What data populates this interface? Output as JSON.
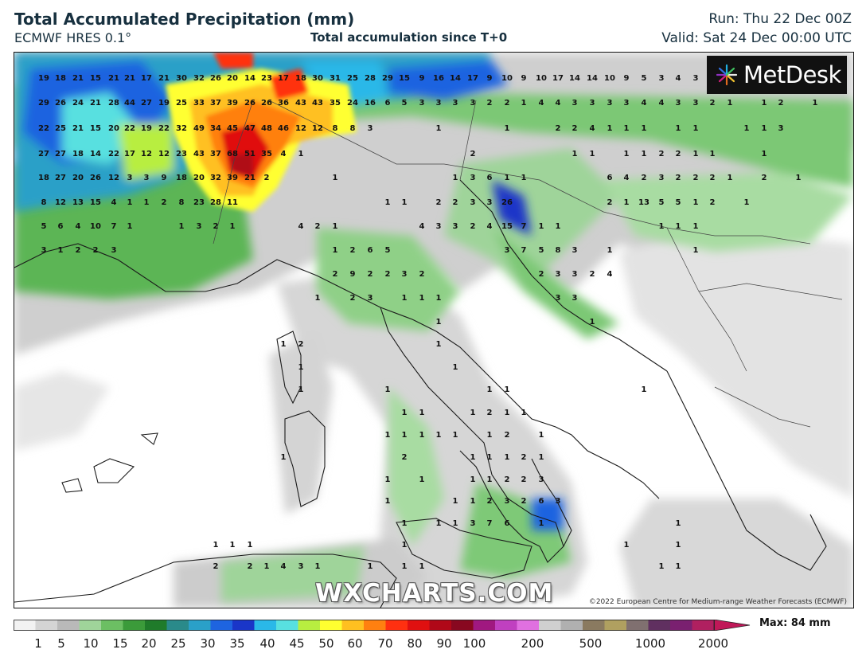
{
  "header": {
    "title": "Total Accumulated Precipitation (mm)",
    "model": "ECMWF HRES 0.1°",
    "accumulation": "Total accumulation since T+0",
    "run": "Run: Thu 22 Dec 00Z",
    "valid": "Valid: Sat 24 Dec 00:00 UTC"
  },
  "logo": {
    "text": "MetDesk",
    "icon": "metdesk-starburst-icon"
  },
  "watermark": "WXCHARTS.COM",
  "copyright": "©2022 European Centre for Medium-range Weather Forecasts (ECMWF)",
  "legend": {
    "ticks": [
      "1",
      "5",
      "10",
      "15",
      "20",
      "25",
      "30",
      "35",
      "40",
      "45",
      "50",
      "60",
      "70",
      "80",
      "90",
      "100",
      "200",
      "500",
      "1000",
      "2000"
    ],
    "max_label": "Max: 84 mm",
    "colors": [
      "#f2f2f2",
      "#d4d4d4",
      "#b9b9b9",
      "#9fd49a",
      "#6cbf63",
      "#3b9b3a",
      "#1f7b2a",
      "#2a8a8a",
      "#2aa0c8",
      "#1e64e0",
      "#1a36c8",
      "#2ab8e8",
      "#58e0e0",
      "#b8ee40",
      "#ffff30",
      "#ffc020",
      "#ff8010",
      "#ff3010",
      "#e01010",
      "#b00818",
      "#880820",
      "#a01880",
      "#c040c0",
      "#e070e0",
      "#d0d0d0",
      "#b0b0b0",
      "#8a7a60",
      "#b0a060",
      "#807070",
      "#603060",
      "#7a2070",
      "#b02060"
    ]
  },
  "map": {
    "region": "Italy and central Mediterranean",
    "labels": [
      [
        "19",
        55,
        97
      ],
      [
        "18",
        76,
        97
      ],
      [
        "21",
        98,
        97
      ],
      [
        "15",
        120,
        97
      ],
      [
        "21",
        143,
        97
      ],
      [
        "21",
        163,
        97
      ],
      [
        "17",
        184,
        97
      ],
      [
        "21",
        206,
        97
      ],
      [
        "30",
        228,
        97
      ],
      [
        "32",
        250,
        97
      ],
      [
        "26",
        271,
        97
      ],
      [
        "20",
        292,
        97
      ],
      [
        "14",
        314,
        97
      ],
      [
        "23",
        335,
        97
      ],
      [
        "17",
        356,
        97
      ],
      [
        "18",
        378,
        97
      ],
      [
        "30",
        399,
        97
      ],
      [
        "31",
        421,
        97
      ],
      [
        "25",
        443,
        97
      ],
      [
        "28",
        465,
        97
      ],
      [
        "29",
        487,
        97
      ],
      [
        "15",
        508,
        97
      ],
      [
        "9",
        530,
        97
      ],
      [
        "16",
        551,
        97
      ],
      [
        "14",
        572,
        97
      ],
      [
        "17",
        594,
        97
      ],
      [
        "9",
        615,
        97
      ],
      [
        "10",
        637,
        97
      ],
      [
        "9",
        658,
        97
      ],
      [
        "10",
        680,
        97
      ],
      [
        "17",
        701,
        97
      ],
      [
        "14",
        722,
        97
      ],
      [
        "14",
        744,
        97
      ],
      [
        "10",
        766,
        97
      ],
      [
        "9",
        787,
        97
      ],
      [
        "5",
        809,
        97
      ],
      [
        "3",
        831,
        97
      ],
      [
        "4",
        852,
        97
      ],
      [
        "3",
        874,
        97
      ],
      [
        "29",
        55,
        128
      ],
      [
        "26",
        76,
        128
      ],
      [
        "24",
        98,
        128
      ],
      [
        "21",
        120,
        128
      ],
      [
        "28",
        143,
        128
      ],
      [
        "44",
        163,
        128
      ],
      [
        "27",
        184,
        128
      ],
      [
        "19",
        206,
        128
      ],
      [
        "25",
        228,
        128
      ],
      [
        "33",
        250,
        128
      ],
      [
        "37",
        271,
        128
      ],
      [
        "39",
        292,
        128
      ],
      [
        "26",
        314,
        128
      ],
      [
        "26",
        335,
        128
      ],
      [
        "36",
        356,
        128
      ],
      [
        "43",
        378,
        128
      ],
      [
        "43",
        399,
        128
      ],
      [
        "35",
        421,
        128
      ],
      [
        "24",
        443,
        128
      ],
      [
        "16",
        465,
        128
      ],
      [
        "6",
        487,
        128
      ],
      [
        "5",
        508,
        128
      ],
      [
        "3",
        530,
        128
      ],
      [
        "3",
        551,
        128
      ],
      [
        "3",
        572,
        128
      ],
      [
        "3",
        594,
        128
      ],
      [
        "2",
        615,
        128
      ],
      [
        "2",
        637,
        128
      ],
      [
        "1",
        658,
        128
      ],
      [
        "4",
        680,
        128
      ],
      [
        "4",
        701,
        128
      ],
      [
        "3",
        722,
        128
      ],
      [
        "3",
        744,
        128
      ],
      [
        "3",
        766,
        128
      ],
      [
        "3",
        787,
        128
      ],
      [
        "4",
        809,
        128
      ],
      [
        "4",
        831,
        128
      ],
      [
        "3",
        852,
        128
      ],
      [
        "3",
        874,
        128
      ],
      [
        "2",
        895,
        128
      ],
      [
        "1",
        917,
        128
      ],
      [
        "1",
        960,
        128
      ],
      [
        "2",
        981,
        128
      ],
      [
        "1",
        1024,
        128
      ],
      [
        "22",
        55,
        160
      ],
      [
        "25",
        76,
        160
      ],
      [
        "21",
        98,
        160
      ],
      [
        "15",
        120,
        160
      ],
      [
        "20",
        143,
        160
      ],
      [
        "22",
        163,
        160
      ],
      [
        "19",
        184,
        160
      ],
      [
        "22",
        206,
        160
      ],
      [
        "32",
        228,
        160
      ],
      [
        "49",
        250,
        160
      ],
      [
        "34",
        271,
        160
      ],
      [
        "45",
        292,
        160
      ],
      [
        "47",
        314,
        160
      ],
      [
        "48",
        335,
        160
      ],
      [
        "46",
        356,
        160
      ],
      [
        "12",
        378,
        160
      ],
      [
        "12",
        399,
        160
      ],
      [
        "8",
        421,
        160
      ],
      [
        "8",
        443,
        160
      ],
      [
        "3",
        465,
        160
      ],
      [
        "1",
        551,
        160
      ],
      [
        "1",
        637,
        160
      ],
      [
        "2",
        701,
        160
      ],
      [
        "2",
        722,
        160
      ],
      [
        "4",
        744,
        160
      ],
      [
        "1",
        766,
        160
      ],
      [
        "1",
        787,
        160
      ],
      [
        "1",
        809,
        160
      ],
      [
        "1",
        852,
        160
      ],
      [
        "1",
        874,
        160
      ],
      [
        "1",
        938,
        160
      ],
      [
        "1",
        960,
        160
      ],
      [
        "3",
        981,
        160
      ],
      [
        "27",
        55,
        192
      ],
      [
        "27",
        76,
        192
      ],
      [
        "18",
        98,
        192
      ],
      [
        "14",
        120,
        192
      ],
      [
        "22",
        143,
        192
      ],
      [
        "17",
        163,
        192
      ],
      [
        "12",
        184,
        192
      ],
      [
        "12",
        206,
        192
      ],
      [
        "23",
        228,
        192
      ],
      [
        "43",
        250,
        192
      ],
      [
        "37",
        271,
        192
      ],
      [
        "68",
        292,
        192
      ],
      [
        "51",
        314,
        192
      ],
      [
        "35",
        335,
        192
      ],
      [
        "4",
        356,
        192
      ],
      [
        "1",
        378,
        192
      ],
      [
        "2",
        594,
        192
      ],
      [
        "1",
        722,
        192
      ],
      [
        "1",
        744,
        192
      ],
      [
        "1",
        787,
        192
      ],
      [
        "1",
        809,
        192
      ],
      [
        "2",
        831,
        192
      ],
      [
        "2",
        852,
        192
      ],
      [
        "1",
        874,
        192
      ],
      [
        "1",
        895,
        192
      ],
      [
        "1",
        960,
        192
      ],
      [
        "18",
        55,
        222
      ],
      [
        "27",
        76,
        222
      ],
      [
        "20",
        98,
        222
      ],
      [
        "26",
        120,
        222
      ],
      [
        "12",
        143,
        222
      ],
      [
        "3",
        163,
        222
      ],
      [
        "3",
        184,
        222
      ],
      [
        "9",
        206,
        222
      ],
      [
        "18",
        228,
        222
      ],
      [
        "20",
        250,
        222
      ],
      [
        "32",
        271,
        222
      ],
      [
        "39",
        292,
        222
      ],
      [
        "21",
        314,
        222
      ],
      [
        "2",
        335,
        222
      ],
      [
        "1",
        421,
        222
      ],
      [
        "1",
        572,
        222
      ],
      [
        "3",
        594,
        222
      ],
      [
        "6",
        615,
        222
      ],
      [
        "1",
        637,
        222
      ],
      [
        "1",
        658,
        222
      ],
      [
        "6",
        766,
        222
      ],
      [
        "4",
        787,
        222
      ],
      [
        "2",
        809,
        222
      ],
      [
        "3",
        831,
        222
      ],
      [
        "2",
        852,
        222
      ],
      [
        "2",
        874,
        222
      ],
      [
        "2",
        895,
        222
      ],
      [
        "1",
        917,
        222
      ],
      [
        "2",
        960,
        222
      ],
      [
        "1",
        1003,
        222
      ],
      [
        "8",
        55,
        253
      ],
      [
        "12",
        76,
        253
      ],
      [
        "13",
        98,
        253
      ],
      [
        "15",
        120,
        253
      ],
      [
        "4",
        143,
        253
      ],
      [
        "1",
        163,
        253
      ],
      [
        "1",
        184,
        253
      ],
      [
        "2",
        206,
        253
      ],
      [
        "8",
        228,
        253
      ],
      [
        "23",
        250,
        253
      ],
      [
        "28",
        271,
        253
      ],
      [
        "11",
        292,
        253
      ],
      [
        "1",
        487,
        253
      ],
      [
        "1",
        508,
        253
      ],
      [
        "2",
        551,
        253
      ],
      [
        "2",
        572,
        253
      ],
      [
        "3",
        594,
        253
      ],
      [
        "3",
        615,
        253
      ],
      [
        "26",
        637,
        253
      ],
      [
        "2",
        766,
        253
      ],
      [
        "1",
        787,
        253
      ],
      [
        "13",
        809,
        253
      ],
      [
        "5",
        831,
        253
      ],
      [
        "5",
        852,
        253
      ],
      [
        "1",
        874,
        253
      ],
      [
        "2",
        895,
        253
      ],
      [
        "1",
        938,
        253
      ],
      [
        "5",
        55,
        283
      ],
      [
        "6",
        76,
        283
      ],
      [
        "4",
        98,
        283
      ],
      [
        "10",
        120,
        283
      ],
      [
        "7",
        143,
        283
      ],
      [
        "1",
        163,
        283
      ],
      [
        "1",
        228,
        283
      ],
      [
        "3",
        250,
        283
      ],
      [
        "2",
        271,
        283
      ],
      [
        "1",
        292,
        283
      ],
      [
        "4",
        378,
        283
      ],
      [
        "2",
        399,
        283
      ],
      [
        "1",
        421,
        283
      ],
      [
        "4",
        530,
        283
      ],
      [
        "3",
        551,
        283
      ],
      [
        "3",
        572,
        283
      ],
      [
        "2",
        594,
        283
      ],
      [
        "4",
        615,
        283
      ],
      [
        "15",
        637,
        283
      ],
      [
        "7",
        658,
        283
      ],
      [
        "1",
        680,
        283
      ],
      [
        "1",
        701,
        283
      ],
      [
        "1",
        831,
        283
      ],
      [
        "1",
        852,
        283
      ],
      [
        "1",
        874,
        283
      ],
      [
        "3",
        55,
        313
      ],
      [
        "1",
        76,
        313
      ],
      [
        "2",
        98,
        313
      ],
      [
        "2",
        120,
        313
      ],
      [
        "3",
        143,
        313
      ],
      [
        "1",
        421,
        313
      ],
      [
        "2",
        443,
        313
      ],
      [
        "6",
        465,
        313
      ],
      [
        "5",
        487,
        313
      ],
      [
        "3",
        637,
        313
      ],
      [
        "7",
        658,
        313
      ],
      [
        "5",
        680,
        313
      ],
      [
        "8",
        701,
        313
      ],
      [
        "3",
        722,
        313
      ],
      [
        "1",
        766,
        313
      ],
      [
        "1",
        874,
        313
      ],
      [
        "2",
        421,
        343
      ],
      [
        "9",
        443,
        343
      ],
      [
        "2",
        465,
        343
      ],
      [
        "2",
        487,
        343
      ],
      [
        "3",
        508,
        343
      ],
      [
        "2",
        530,
        343
      ],
      [
        "2",
        680,
        343
      ],
      [
        "3",
        701,
        343
      ],
      [
        "3",
        722,
        343
      ],
      [
        "2",
        744,
        343
      ],
      [
        "4",
        766,
        343
      ],
      [
        "1",
        399,
        373
      ],
      [
        "2",
        443,
        373
      ],
      [
        "3",
        465,
        373
      ],
      [
        "1",
        508,
        373
      ],
      [
        "1",
        530,
        373
      ],
      [
        "1",
        551,
        373
      ],
      [
        "3",
        701,
        373
      ],
      [
        "3",
        722,
        373
      ],
      [
        "1",
        744,
        403
      ],
      [
        "1",
        551,
        403
      ],
      [
        "1",
        356,
        431
      ],
      [
        "2",
        378,
        431
      ],
      [
        "1",
        551,
        431
      ],
      [
        "1",
        378,
        460
      ],
      [
        "1",
        572,
        460
      ],
      [
        "1",
        378,
        488
      ],
      [
        "1",
        487,
        488
      ],
      [
        "1",
        615,
        488
      ],
      [
        "1",
        637,
        488
      ],
      [
        "1",
        809,
        488
      ],
      [
        "1",
        508,
        517
      ],
      [
        "1",
        530,
        517
      ],
      [
        "1",
        594,
        517
      ],
      [
        "2",
        615,
        517
      ],
      [
        "1",
        637,
        517
      ],
      [
        "1",
        658,
        517
      ],
      [
        "1",
        487,
        545
      ],
      [
        "1",
        508,
        545
      ],
      [
        "1",
        530,
        545
      ],
      [
        "1",
        551,
        545
      ],
      [
        "1",
        572,
        545
      ],
      [
        "1",
        615,
        545
      ],
      [
        "2",
        637,
        545
      ],
      [
        "1",
        680,
        545
      ],
      [
        "1",
        356,
        573
      ],
      [
        "2",
        508,
        573
      ],
      [
        "1",
        594,
        573
      ],
      [
        "1",
        615,
        573
      ],
      [
        "1",
        637,
        573
      ],
      [
        "2",
        658,
        573
      ],
      [
        "1",
        680,
        573
      ],
      [
        "1",
        487,
        601
      ],
      [
        "1",
        530,
        601
      ],
      [
        "1",
        594,
        601
      ],
      [
        "1",
        615,
        601
      ],
      [
        "2",
        637,
        601
      ],
      [
        "2",
        658,
        601
      ],
      [
        "3",
        680,
        601
      ],
      [
        "1",
        487,
        628
      ],
      [
        "1",
        572,
        628
      ],
      [
        "1",
        594,
        628
      ],
      [
        "2",
        615,
        628
      ],
      [
        "3",
        637,
        628
      ],
      [
        "2",
        658,
        628
      ],
      [
        "6",
        680,
        628
      ],
      [
        "3",
        701,
        628
      ],
      [
        "1",
        508,
        656
      ],
      [
        "1",
        551,
        656
      ],
      [
        "1",
        572,
        656
      ],
      [
        "3",
        594,
        656
      ],
      [
        "7",
        615,
        656
      ],
      [
        "6",
        637,
        656
      ],
      [
        "1",
        680,
        656
      ],
      [
        "1",
        852,
        656
      ],
      [
        "1",
        271,
        683
      ],
      [
        "1",
        292,
        683
      ],
      [
        "1",
        314,
        683
      ],
      [
        "1",
        508,
        683
      ],
      [
        "1",
        787,
        683
      ],
      [
        "1",
        852,
        683
      ],
      [
        "2",
        271,
        710
      ],
      [
        "2",
        314,
        710
      ],
      [
        "1",
        335,
        710
      ],
      [
        "4",
        356,
        710
      ],
      [
        "3",
        378,
        710
      ],
      [
        "1",
        399,
        710
      ],
      [
        "1",
        465,
        710
      ],
      [
        "1",
        508,
        710
      ],
      [
        "1",
        530,
        710
      ],
      [
        "1",
        831,
        710
      ],
      [
        "1",
        852,
        710
      ]
    ]
  }
}
